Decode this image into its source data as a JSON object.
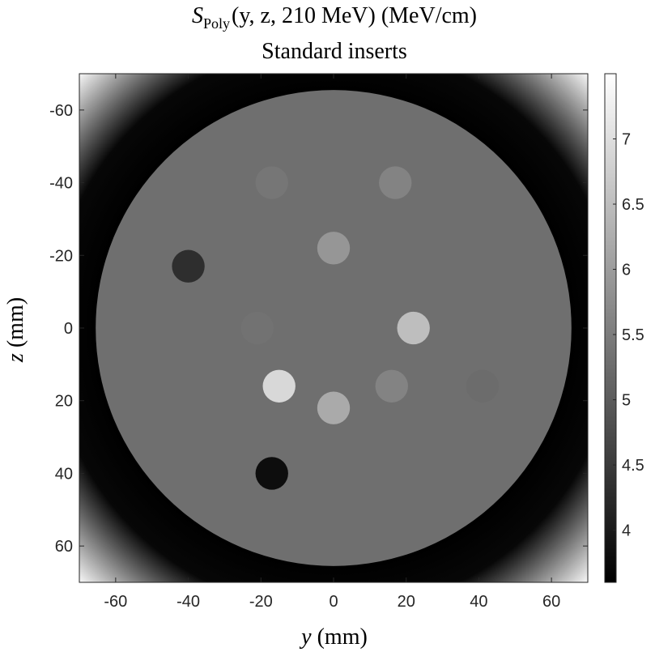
{
  "chart_data": {
    "type": "image",
    "title": {
      "symbol": "S",
      "subscript": "Poly",
      "rest": "(y, z, 210 MeV) (MeV/cm)"
    },
    "subtitle": "Standard inserts",
    "xlabel": {
      "var": "y",
      "unit": "(mm)"
    },
    "ylabel": {
      "var": "z",
      "unit": "(mm)"
    },
    "xlim": [
      -70,
      70
    ],
    "ylim": [
      -70,
      70
    ],
    "xticks": [
      -60,
      -40,
      -20,
      0,
      20,
      40,
      60
    ],
    "yticks": [
      -60,
      -40,
      -20,
      0,
      20,
      40,
      60
    ],
    "colormap": "gray",
    "clim": [
      3.6,
      7.5
    ],
    "cticks": [
      4,
      4.5,
      5,
      5.5,
      6,
      6.5,
      7
    ],
    "background": {
      "value": 5.3,
      "radius": 65.5
    },
    "outside": {
      "radii": [
        65.5,
        78,
        99
      ],
      "values": [
        3.6,
        3.7,
        7.4
      ]
    },
    "insert_radius": 4.5,
    "inserts": [
      {
        "y": -17,
        "z": -40,
        "value": 5.4
      },
      {
        "y": 17,
        "z": -40,
        "value": 5.6
      },
      {
        "y": 0,
        "z": -22,
        "value": 5.9
      },
      {
        "y": -40,
        "z": -17,
        "value": 4.3
      },
      {
        "y": 22,
        "z": 0,
        "value": 6.5
      },
      {
        "y": -21,
        "z": 0,
        "value": 5.35
      },
      {
        "y": -15,
        "z": 16,
        "value": 6.9
      },
      {
        "y": 16,
        "z": 16,
        "value": 5.6
      },
      {
        "y": 0,
        "z": 22,
        "value": 6.2
      },
      {
        "y": -17,
        "z": 40,
        "value": 3.8
      },
      {
        "y": 41,
        "z": 16,
        "value": 5.25
      }
    ]
  }
}
